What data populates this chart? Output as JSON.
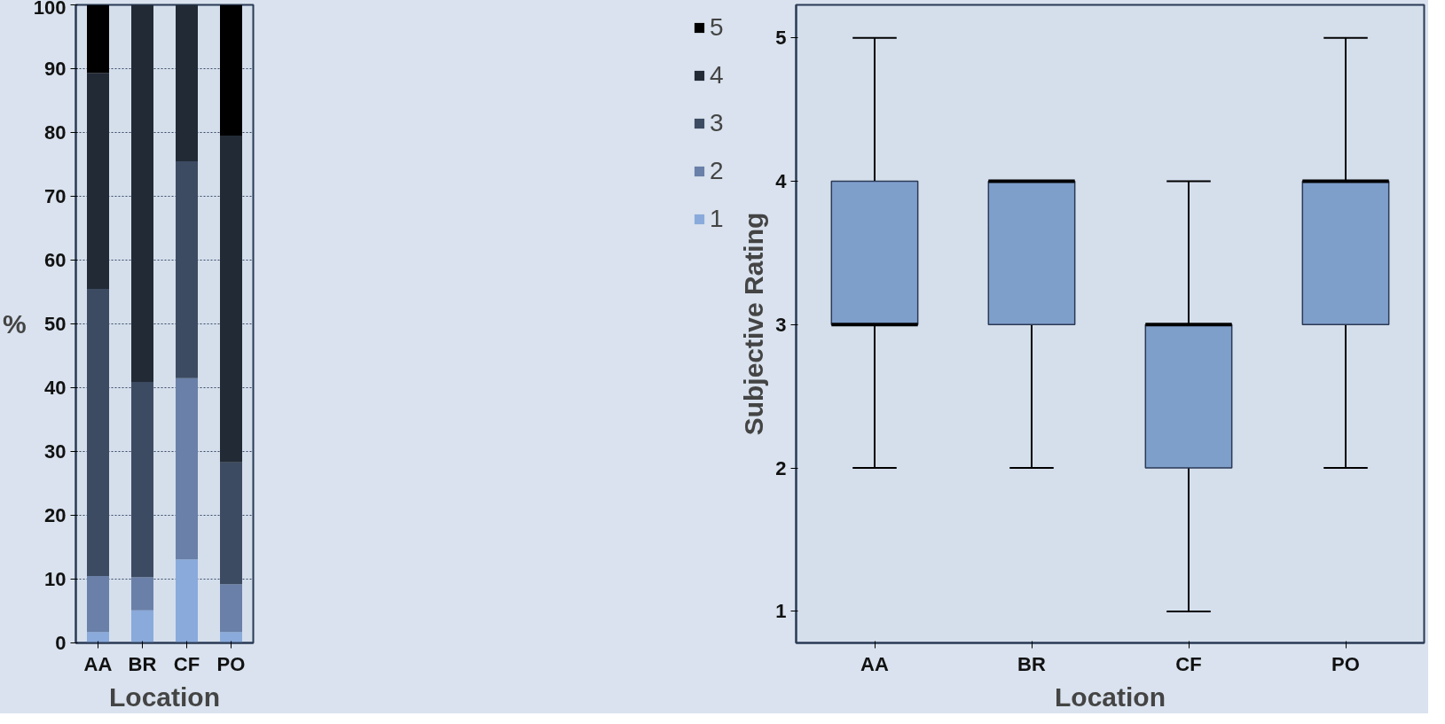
{
  "chart_data": [
    {
      "type": "bar",
      "stacked": true,
      "categories": [
        "AA",
        "BR",
        "CF",
        "PO"
      ],
      "xlabel": "Location",
      "ylabel": "%",
      "ylim": [
        0,
        100
      ],
      "yticks": [
        0,
        10,
        20,
        30,
        40,
        50,
        60,
        70,
        80,
        90,
        100
      ],
      "grid": "y",
      "legend": "right",
      "series": [
        {
          "name": "1",
          "color": "#8aaadb",
          "values": [
            1.7,
            5.1,
            13.1,
            1.7
          ]
        },
        {
          "name": "2",
          "color": "#6a80a8",
          "values": [
            8.8,
            5.2,
            28.4,
            7.5
          ]
        },
        {
          "name": "3",
          "color": "#3d4b62",
          "values": [
            45.0,
            30.6,
            34.0,
            19.1
          ]
        },
        {
          "name": "4",
          "color": "#222a36",
          "values": [
            33.8,
            59.1,
            24.5,
            51.2
          ]
        },
        {
          "name": "5",
          "color": "#000000",
          "values": [
            10.7,
            0,
            0,
            20.5
          ]
        }
      ]
    },
    {
      "type": "box",
      "categories": [
        "AA",
        "BR",
        "CF",
        "PO"
      ],
      "xlabel": "Location",
      "ylabel": "Subjective Rating",
      "ylim": [
        0.78,
        5.23
      ],
      "yticks": [
        1,
        2,
        3,
        4,
        5
      ],
      "grid": false,
      "series": [
        {
          "color": "#7f9fcb",
          "boxes": [
            {
              "low": 2,
              "q1": 3,
              "median": 3,
              "q3": 4,
              "high": 5
            },
            {
              "low": 2,
              "q1": 3,
              "median": 4,
              "q3": 4,
              "high": 4
            },
            {
              "low": 1,
              "q1": 2,
              "median": 3,
              "q3": 3,
              "high": 4
            },
            {
              "low": 2,
              "q1": 3,
              "median": 4,
              "q3": 4,
              "high": 5
            }
          ]
        }
      ]
    }
  ]
}
